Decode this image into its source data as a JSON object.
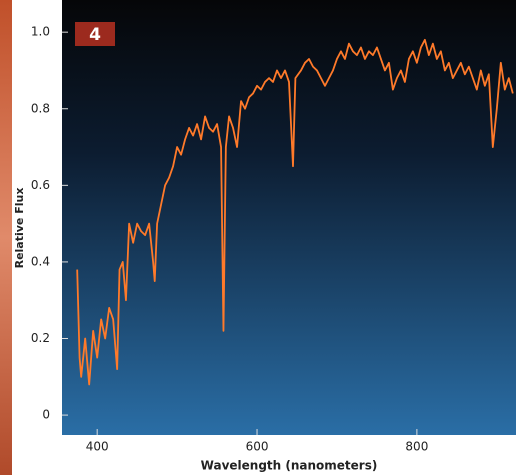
{
  "chart_data": {
    "type": "line",
    "panel_label": "4",
    "ylabel": "Relative Flux",
    "xlabel": "Wavelength (nanometers)",
    "x": [
      375,
      378,
      380,
      385,
      390,
      395,
      400,
      405,
      410,
      415,
      420,
      425,
      428,
      432,
      436,
      440,
      445,
      450,
      455,
      460,
      465,
      470,
      472,
      475,
      480,
      485,
      490,
      495,
      500,
      505,
      510,
      515,
      520,
      525,
      530,
      535,
      540,
      545,
      550,
      555,
      558,
      561,
      565,
      570,
      575,
      580,
      585,
      590,
      595,
      600,
      605,
      610,
      615,
      620,
      625,
      630,
      635,
      640,
      645,
      648,
      655,
      660,
      665,
      670,
      675,
      680,
      685,
      690,
      695,
      700,
      705,
      710,
      715,
      720,
      725,
      730,
      735,
      740,
      745,
      750,
      755,
      760,
      765,
      770,
      775,
      780,
      785,
      790,
      795,
      800,
      805,
      810,
      815,
      820,
      825,
      830,
      835,
      840,
      845,
      850,
      855,
      860,
      865,
      870,
      875,
      880,
      885,
      890,
      895,
      900,
      905,
      910,
      915,
      920
    ],
    "series": [
      {
        "name": "Relative Flux",
        "color": "#ff7a2a",
        "values": [
          0.38,
          0.15,
          0.1,
          0.2,
          0.08,
          0.22,
          0.15,
          0.25,
          0.2,
          0.28,
          0.25,
          0.12,
          0.38,
          0.4,
          0.3,
          0.5,
          0.45,
          0.5,
          0.48,
          0.47,
          0.5,
          0.4,
          0.35,
          0.5,
          0.55,
          0.6,
          0.62,
          0.65,
          0.7,
          0.68,
          0.72,
          0.75,
          0.73,
          0.76,
          0.72,
          0.78,
          0.75,
          0.74,
          0.76,
          0.7,
          0.22,
          0.7,
          0.78,
          0.75,
          0.7,
          0.82,
          0.8,
          0.83,
          0.84,
          0.86,
          0.85,
          0.87,
          0.88,
          0.87,
          0.9,
          0.88,
          0.9,
          0.87,
          0.65,
          0.88,
          0.9,
          0.92,
          0.93,
          0.91,
          0.9,
          0.88,
          0.86,
          0.88,
          0.9,
          0.93,
          0.95,
          0.93,
          0.97,
          0.95,
          0.94,
          0.96,
          0.93,
          0.95,
          0.94,
          0.96,
          0.93,
          0.9,
          0.92,
          0.85,
          0.88,
          0.9,
          0.87,
          0.93,
          0.95,
          0.92,
          0.96,
          0.98,
          0.94,
          0.97,
          0.93,
          0.95,
          0.9,
          0.92,
          0.88,
          0.9,
          0.92,
          0.89,
          0.91,
          0.88,
          0.85,
          0.9,
          0.86,
          0.89,
          0.7,
          0.8,
          0.92,
          0.85,
          0.88,
          0.84
        ]
      }
    ],
    "xlim": [
      356,
      924
    ],
    "ylim": [
      -0.052,
      1.084
    ],
    "xticks": [
      400,
      600,
      800
    ],
    "yticks": [
      0,
      0.2,
      0.4,
      0.6,
      0.8,
      {
        "value": 1,
        "label": "1.0"
      }
    ]
  }
}
